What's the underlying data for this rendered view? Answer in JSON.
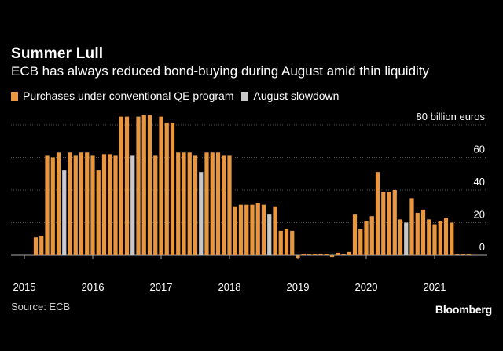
{
  "header": {
    "title": "Summer Lull",
    "subtitle": "ECB has always reduced bond-buying during August amid thin liquidity"
  },
  "legend": {
    "items": [
      {
        "label": "Purchases under conventional QE program",
        "color": "#e8963f"
      },
      {
        "label": "August slowdown",
        "color": "#c8c8c8"
      }
    ]
  },
  "footer": {
    "source": "Source: ECB",
    "brand": "Bloomberg"
  },
  "colors": {
    "bar": "#e8963f",
    "august": "#c8c8c8",
    "grid": "#555555",
    "zero_line": "#aaaaaa"
  },
  "chart_data": {
    "type": "bar",
    "title": "Summer Lull",
    "subtitle": "ECB has always reduced bond-buying during August amid thin liquidity",
    "ylabel": "80 billion euros",
    "y_ticks": [
      0,
      20,
      40,
      60,
      80
    ],
    "y_tick_labels": [
      "0",
      "20",
      "40",
      "60",
      "80 billion euros"
    ],
    "ylim": [
      -3,
      82
    ],
    "grid": true,
    "x_start": "2015-03",
    "x_end": "2021-07",
    "x_tick_labels": [
      "2015",
      "2016",
      "2017",
      "2018",
      "2019",
      "2020",
      "2021"
    ],
    "x_tick_months": [
      "2015-01",
      "2016-01",
      "2017-01",
      "2018-01",
      "2019-01",
      "2020-01",
      "2021-01"
    ],
    "series": [
      {
        "name": "Purchases under conventional QE program",
        "key": "regular"
      },
      {
        "name": "August slowdown",
        "key": "august"
      }
    ],
    "points": [
      {
        "month": "2015-03",
        "value": 11,
        "series": "regular"
      },
      {
        "month": "2015-04",
        "value": 12,
        "series": "regular"
      },
      {
        "month": "2015-05",
        "value": 61,
        "series": "regular"
      },
      {
        "month": "2015-06",
        "value": 60,
        "series": "regular"
      },
      {
        "month": "2015-07",
        "value": 63,
        "series": "regular"
      },
      {
        "month": "2015-08",
        "value": 52,
        "series": "august"
      },
      {
        "month": "2015-09",
        "value": 63,
        "series": "regular"
      },
      {
        "month": "2015-10",
        "value": 61,
        "series": "regular"
      },
      {
        "month": "2015-11",
        "value": 63,
        "series": "regular"
      },
      {
        "month": "2015-12",
        "value": 63,
        "series": "regular"
      },
      {
        "month": "2016-01",
        "value": 61,
        "series": "regular"
      },
      {
        "month": "2016-02",
        "value": 52,
        "series": "regular"
      },
      {
        "month": "2016-03",
        "value": 62,
        "series": "regular"
      },
      {
        "month": "2016-04",
        "value": 62,
        "series": "regular"
      },
      {
        "month": "2016-05",
        "value": 61,
        "series": "regular"
      },
      {
        "month": "2016-06",
        "value": 85,
        "series": "regular"
      },
      {
        "month": "2016-07",
        "value": 85,
        "series": "regular"
      },
      {
        "month": "2016-08",
        "value": 61,
        "series": "august"
      },
      {
        "month": "2016-09",
        "value": 85,
        "series": "regular"
      },
      {
        "month": "2016-10",
        "value": 86,
        "series": "regular"
      },
      {
        "month": "2016-11",
        "value": 86,
        "series": "regular"
      },
      {
        "month": "2016-12",
        "value": 61,
        "series": "regular"
      },
      {
        "month": "2017-01",
        "value": 85,
        "series": "regular"
      },
      {
        "month": "2017-02",
        "value": 81,
        "series": "regular"
      },
      {
        "month": "2017-03",
        "value": 81,
        "series": "regular"
      },
      {
        "month": "2017-04",
        "value": 63,
        "series": "regular"
      },
      {
        "month": "2017-05",
        "value": 63,
        "series": "regular"
      },
      {
        "month": "2017-06",
        "value": 63,
        "series": "regular"
      },
      {
        "month": "2017-07",
        "value": 61,
        "series": "regular"
      },
      {
        "month": "2017-08",
        "value": 51,
        "series": "august"
      },
      {
        "month": "2017-09",
        "value": 63,
        "series": "regular"
      },
      {
        "month": "2017-10",
        "value": 63,
        "series": "regular"
      },
      {
        "month": "2017-11",
        "value": 63,
        "series": "regular"
      },
      {
        "month": "2017-12",
        "value": 61,
        "series": "regular"
      },
      {
        "month": "2018-01",
        "value": 61,
        "series": "regular"
      },
      {
        "month": "2018-02",
        "value": 30,
        "series": "regular"
      },
      {
        "month": "2018-03",
        "value": 31,
        "series": "regular"
      },
      {
        "month": "2018-04",
        "value": 31,
        "series": "regular"
      },
      {
        "month": "2018-05",
        "value": 31,
        "series": "regular"
      },
      {
        "month": "2018-06",
        "value": 32,
        "series": "regular"
      },
      {
        "month": "2018-07",
        "value": 31,
        "series": "regular"
      },
      {
        "month": "2018-08",
        "value": 25,
        "series": "august"
      },
      {
        "month": "2018-09",
        "value": 30,
        "series": "regular"
      },
      {
        "month": "2018-10",
        "value": 15,
        "series": "regular"
      },
      {
        "month": "2018-11",
        "value": 16,
        "series": "regular"
      },
      {
        "month": "2018-12",
        "value": 15,
        "series": "regular"
      },
      {
        "month": "2019-01",
        "value": -2,
        "series": "regular"
      },
      {
        "month": "2019-02",
        "value": 1,
        "series": "regular"
      },
      {
        "month": "2019-03",
        "value": 0.5,
        "series": "regular"
      },
      {
        "month": "2019-04",
        "value": 0.5,
        "series": "regular"
      },
      {
        "month": "2019-05",
        "value": 1,
        "series": "regular"
      },
      {
        "month": "2019-06",
        "value": 0.5,
        "series": "regular"
      },
      {
        "month": "2019-07",
        "value": -1,
        "series": "regular"
      },
      {
        "month": "2019-08",
        "value": 1.5,
        "series": "regular"
      },
      {
        "month": "2019-09",
        "value": 0.5,
        "series": "regular"
      },
      {
        "month": "2019-10",
        "value": 2,
        "series": "regular"
      },
      {
        "month": "2019-11",
        "value": 25,
        "series": "regular"
      },
      {
        "month": "2019-12",
        "value": 16,
        "series": "regular"
      },
      {
        "month": "2020-01",
        "value": 21,
        "series": "regular"
      },
      {
        "month": "2020-02",
        "value": 24,
        "series": "regular"
      },
      {
        "month": "2020-03",
        "value": 51,
        "series": "regular"
      },
      {
        "month": "2020-04",
        "value": 39,
        "series": "regular"
      },
      {
        "month": "2020-05",
        "value": 39,
        "series": "regular"
      },
      {
        "month": "2020-06",
        "value": 40,
        "series": "regular"
      },
      {
        "month": "2020-07",
        "value": 22,
        "series": "regular"
      },
      {
        "month": "2020-08",
        "value": 20,
        "series": "august"
      },
      {
        "month": "2020-09",
        "value": 35,
        "series": "regular"
      },
      {
        "month": "2020-10",
        "value": 26,
        "series": "regular"
      },
      {
        "month": "2020-11",
        "value": 28,
        "series": "regular"
      },
      {
        "month": "2020-12",
        "value": 22,
        "series": "regular"
      },
      {
        "month": "2021-01",
        "value": 19,
        "series": "regular"
      },
      {
        "month": "2021-02",
        "value": 21,
        "series": "regular"
      },
      {
        "month": "2021-03",
        "value": 23,
        "series": "regular"
      },
      {
        "month": "2021-04",
        "value": 20,
        "series": "regular"
      },
      {
        "month": "2021-05",
        "value": 0.5,
        "series": "regular"
      },
      {
        "month": "2021-06",
        "value": 0.5,
        "series": "regular"
      },
      {
        "month": "2021-07",
        "value": 0.5,
        "series": "regular"
      }
    ]
  }
}
